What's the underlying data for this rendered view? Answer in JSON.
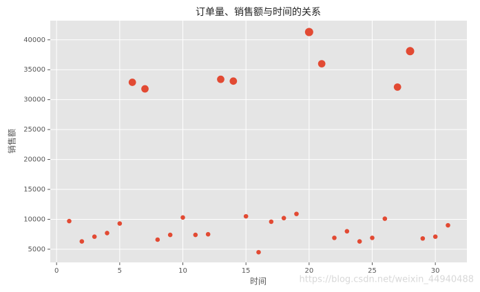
{
  "chart_data": {
    "type": "scatter",
    "title": "订单量、销售额与时间的关系",
    "xlabel": "时间",
    "ylabel": "销售额",
    "x": [
      1,
      2,
      3,
      4,
      5,
      6,
      7,
      8,
      9,
      10,
      11,
      12,
      13,
      14,
      15,
      16,
      17,
      18,
      19,
      20,
      21,
      22,
      23,
      24,
      25,
      26,
      27,
      28,
      29,
      30,
      31
    ],
    "values": [
      9700,
      6300,
      7100,
      7700,
      9300,
      32900,
      31800,
      6600,
      7400,
      10300,
      7400,
      7500,
      33400,
      33100,
      10500,
      4500,
      9600,
      10200,
      10900,
      41300,
      36000,
      6900,
      8000,
      6300,
      6900,
      10100,
      32100,
      38100,
      6800,
      7100,
      9000
    ],
    "sizes": [
      30,
      30,
      30,
      30,
      30,
      80,
      80,
      30,
      30,
      30,
      30,
      30,
      80,
      80,
      30,
      30,
      30,
      30,
      30,
      100,
      80,
      30,
      30,
      30,
      30,
      30,
      80,
      100,
      30,
      30,
      30
    ],
    "color": "#e24a33",
    "xlim": [
      -0.5,
      32.5
    ],
    "ylim": [
      2800,
      43200
    ],
    "xticks": [
      0,
      5,
      10,
      15,
      20,
      25,
      30
    ],
    "yticks": [
      5000,
      10000,
      15000,
      20000,
      25000,
      30000,
      35000,
      40000
    ],
    "grid": true,
    "watermark": "https://blog.csdn.net/weixin_44940488"
  }
}
